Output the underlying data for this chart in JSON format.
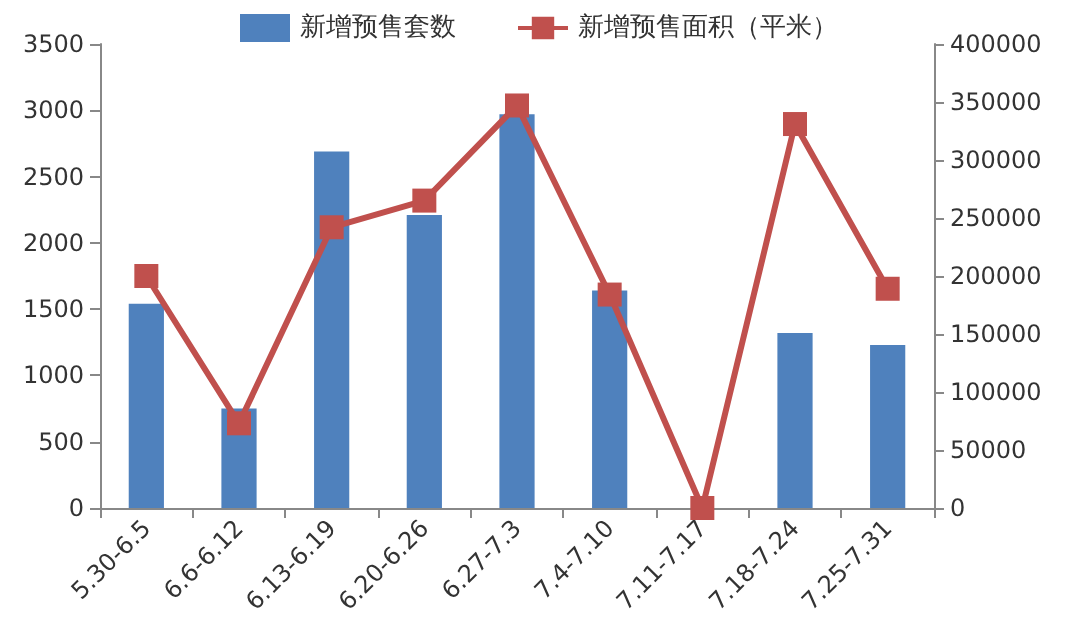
{
  "chart_data": {
    "type": "bar",
    "categories": [
      "5.30-6.5",
      "6.6-6.12",
      "6.13-6.19",
      "6.20-6.26",
      "6.27-7.3",
      "7.4-7.10",
      "7.11-7.17",
      "7.18-7.24",
      "7.25-7.31"
    ],
    "series": [
      {
        "name": "新增预售套数",
        "color": "#4f81bd",
        "values": [
          1540,
          750,
          2690,
          2210,
          2970,
          1640,
          0,
          1320,
          1230
        ]
      },
      {
        "name": "新增预售面积（平米）",
        "type": "line",
        "axis": "y2",
        "color": "#c0504d",
        "marker": "square",
        "values": [
          200000,
          73000,
          242000,
          265000,
          347000,
          184000,
          0,
          331000,
          189000
        ]
      }
    ],
    "ylim": [
      0,
      3500
    ],
    "yticks": [
      0,
      500,
      1000,
      1500,
      2000,
      2500,
      3000,
      3500
    ],
    "y2lim": [
      0,
      400000
    ],
    "y2ticks": [
      0,
      50000,
      100000,
      150000,
      200000,
      250000,
      300000,
      350000,
      400000
    ],
    "legend": "top",
    "grid": false
  }
}
